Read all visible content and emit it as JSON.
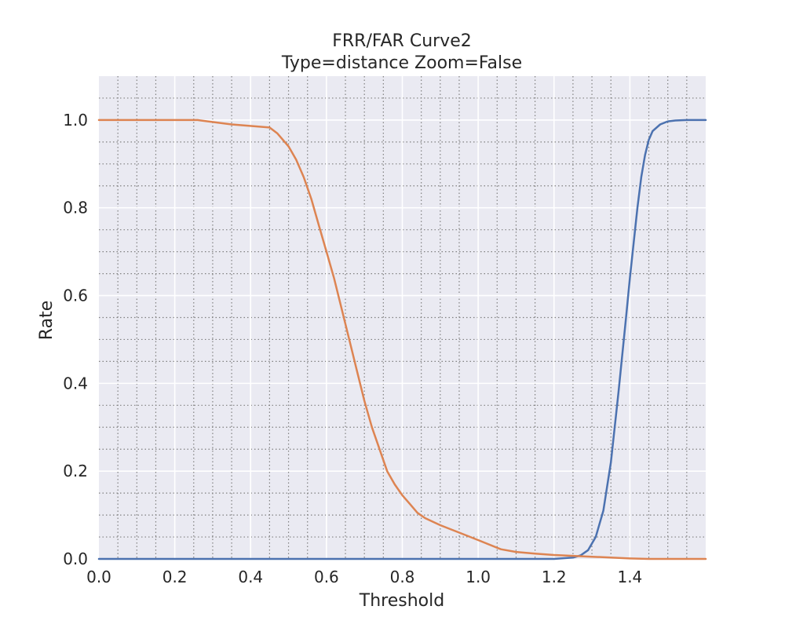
{
  "chart_data": {
    "type": "line",
    "title": "FRR/FAR Curve2",
    "subtitle": "Type=distance Zoom=False",
    "xlabel": "Threshold",
    "ylabel": "Rate",
    "xlim": [
      0.0,
      1.6
    ],
    "ylim": [
      0.0,
      1.1
    ],
    "xticks": [
      "0.0",
      "0.2",
      "0.4",
      "0.6",
      "0.8",
      "1.0",
      "1.2",
      "1.4"
    ],
    "yticks": [
      "0.0",
      "0.2",
      "0.4",
      "0.6",
      "0.8",
      "1.0"
    ],
    "grid": true,
    "minor_grid": true,
    "background": "#EAEAF2",
    "series": [
      {
        "color": "#4C72B0",
        "x": [
          0.0,
          1.0,
          1.2,
          1.25,
          1.27,
          1.29,
          1.31,
          1.33,
          1.35,
          1.37,
          1.39,
          1.4,
          1.41,
          1.42,
          1.43,
          1.44,
          1.45,
          1.46,
          1.48,
          1.5,
          1.52,
          1.55,
          1.6
        ],
        "y": [
          0.0,
          0.0,
          0.0,
          0.003,
          0.008,
          0.02,
          0.05,
          0.11,
          0.22,
          0.38,
          0.55,
          0.64,
          0.72,
          0.8,
          0.87,
          0.92,
          0.955,
          0.975,
          0.99,
          0.997,
          0.999,
          1.0,
          1.0
        ]
      },
      {
        "color": "#DD8452",
        "x": [
          0.0,
          0.2,
          0.26,
          0.35,
          0.45,
          0.47,
          0.5,
          0.52,
          0.54,
          0.56,
          0.58,
          0.6,
          0.62,
          0.64,
          0.66,
          0.68,
          0.7,
          0.72,
          0.74,
          0.76,
          0.78,
          0.8,
          0.82,
          0.84,
          0.86,
          0.88,
          0.9,
          0.95,
          1.0,
          1.06,
          1.1,
          1.15,
          1.2,
          1.25,
          1.3,
          1.35,
          1.4,
          1.45,
          1.5,
          1.6
        ],
        "y": [
          1.0,
          1.0,
          1.0,
          0.99,
          0.983,
          0.97,
          0.94,
          0.91,
          0.87,
          0.82,
          0.76,
          0.7,
          0.64,
          0.57,
          0.5,
          0.43,
          0.36,
          0.3,
          0.25,
          0.2,
          0.17,
          0.145,
          0.125,
          0.105,
          0.093,
          0.085,
          0.077,
          0.06,
          0.043,
          0.022,
          0.016,
          0.012,
          0.009,
          0.007,
          0.005,
          0.003,
          0.001,
          0.0,
          0.0,
          0.0
        ]
      }
    ]
  }
}
